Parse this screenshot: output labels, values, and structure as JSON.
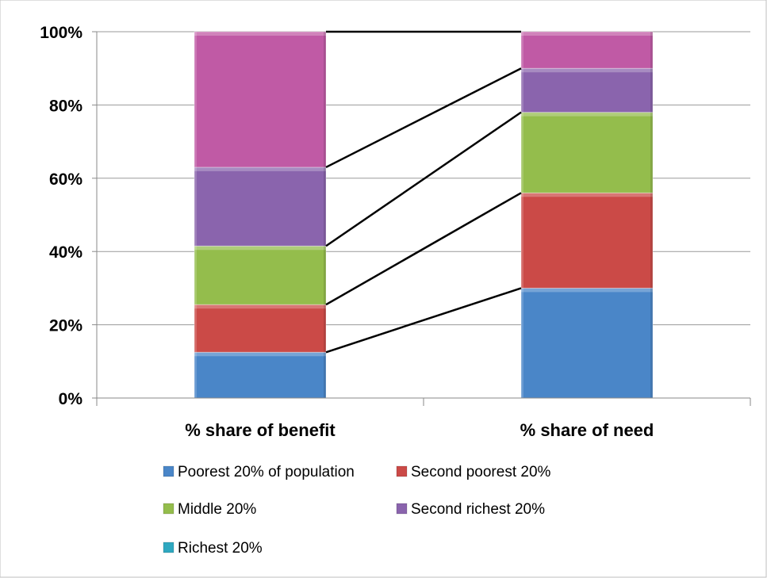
{
  "chart_data": {
    "type": "bar",
    "stacked": true,
    "percent_stacked": true,
    "categories": [
      "% share of benefit",
      "% share of need"
    ],
    "series": [
      {
        "name": "Poorest 20% of population",
        "values": [
          12.5,
          30
        ],
        "color": "#4a86c8"
      },
      {
        "name": "Second poorest 20%",
        "values": [
          13,
          26
        ],
        "color": "#cb4a47"
      },
      {
        "name": "Middle 20%",
        "values": [
          16,
          22
        ],
        "color": "#94bd4c"
      },
      {
        "name": "Second richest 20%",
        "values": [
          21.5,
          12
        ],
        "color": "#8a64ad"
      },
      {
        "name": "Richest 20%",
        "values": [
          37,
          10
        ],
        "color": "#c05aa5"
      }
    ],
    "legend_series": [
      {
        "name": "Poorest 20% of population",
        "color": "#4a86c8"
      },
      {
        "name": "Second poorest 20%",
        "color": "#cb4a47"
      },
      {
        "name": "Middle 20%",
        "color": "#94bd4c"
      },
      {
        "name": "Second richest 20%",
        "color": "#8a64ad"
      },
      {
        "name": "Richest 20%",
        "color": "#2fa8c0"
      }
    ],
    "y_ticks": [
      "0%",
      "20%",
      "40%",
      "60%",
      "80%",
      "100%"
    ],
    "ylim": [
      0,
      100
    ],
    "grid": true,
    "series_lines": true,
    "legend_position": "bottom",
    "title": "",
    "xlabel": "",
    "ylabel": ""
  }
}
